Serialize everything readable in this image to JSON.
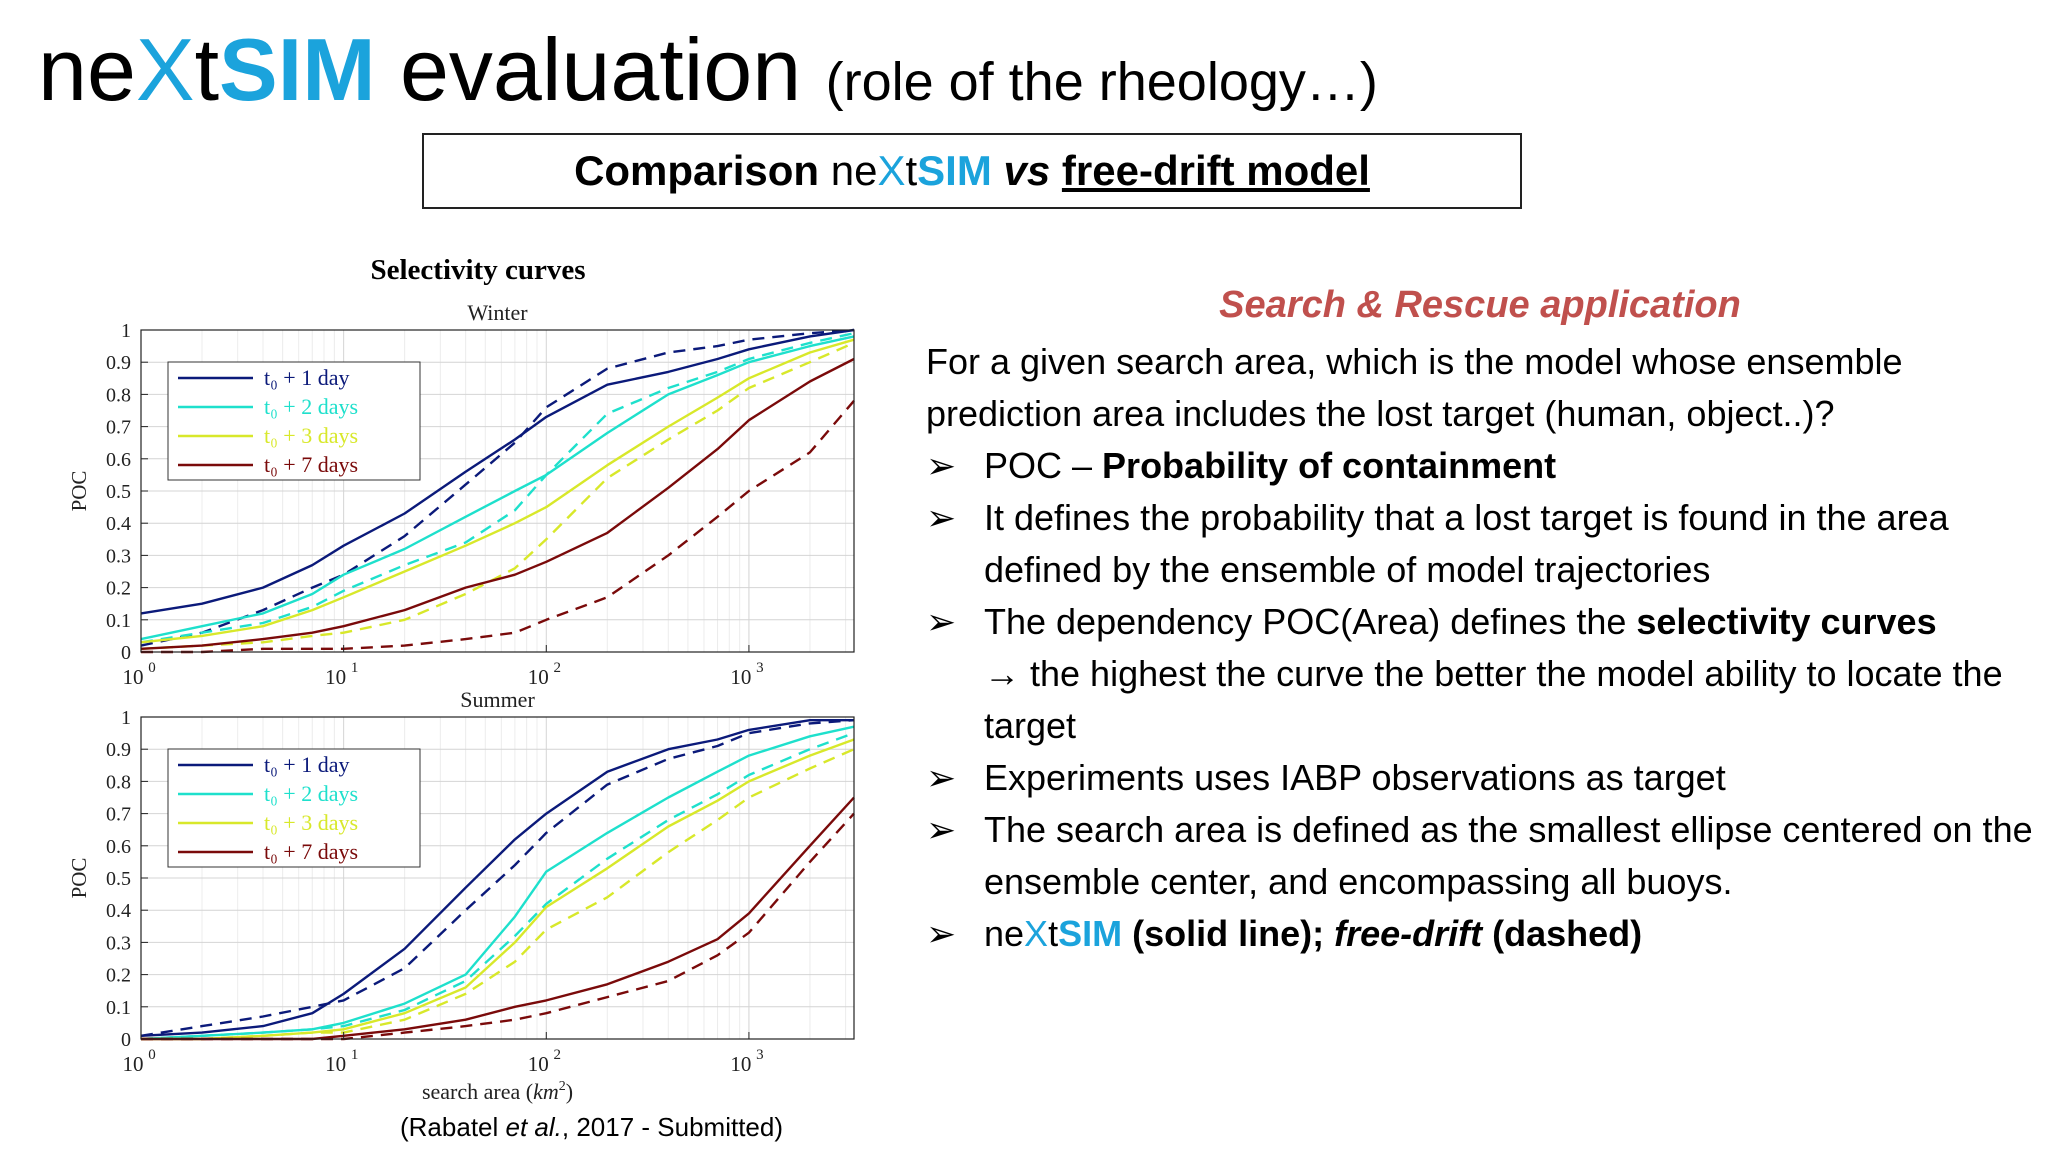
{
  "slide": {
    "title": {
      "ne": "ne",
      "x": "X",
      "t": "t",
      "sim": "SIM",
      "rest": " evaluation",
      "sub": "(role of the rheology…)"
    },
    "comparison": {
      "pre": "Comparison ",
      "ne": "ne",
      "x": "X",
      "t": "t",
      "sim": "SIM",
      "vs": " vs ",
      "model": "free-drift model"
    },
    "figure_title": "Selectivity curves",
    "citation": {
      "open": "(Rabatel ",
      "etal": "et al.",
      "rest": ", 2017 - Submitted)"
    },
    "sar_heading": "Search & Rescue application",
    "intro": "For a given search area, which is the model whose ensemble prediction area includes the lost target (human, object..)?",
    "bullet_marker": "➢",
    "bullets": {
      "b1": {
        "pre": "POC – ",
        "bold": "Probability of containment"
      },
      "b2": "It defines the probability that a lost target is found in the area defined by the ensemble of model trajectories",
      "b3": {
        "pre": "The dependency POC(Area) defines the ",
        "bold": "selectivity curves",
        "arrow": "→",
        "post": " the highest the curve the better the model ability to locate the target"
      },
      "b4": "Experiments uses IABP observations as target",
      "b5": "The search area is defined as the smallest ellipse centered on the ensemble center, and encompassing all buoys.",
      "b6": {
        "ne": "ne",
        "x": "X",
        "t": "t",
        "sim": "SIM",
        "solid": " (solid line); ",
        "fd": "free-drift",
        "dashed": " (dashed)"
      }
    }
  },
  "chart_data": [
    {
      "type": "line",
      "title": "Winter",
      "xlabel": "",
      "ylabel": "POC",
      "xscale": "log",
      "xlim": [
        1,
        3300
      ],
      "ylim": [
        0,
        1
      ],
      "xticks": [
        {
          "v": 1,
          "exp": "0"
        },
        {
          "v": 10,
          "exp": "1"
        },
        {
          "v": 100,
          "exp": "2"
        },
        {
          "v": 1000,
          "exp": "3"
        }
      ],
      "yticks": [
        0,
        0.1,
        0.2,
        0.3,
        0.4,
        0.5,
        0.6,
        0.7,
        0.8,
        0.9,
        1
      ],
      "grid": true,
      "legend_position": "top-left",
      "x": [
        1,
        2,
        4,
        7,
        10,
        20,
        40,
        70,
        100,
        200,
        400,
        700,
        1000,
        2000,
        3300
      ],
      "series": [
        {
          "name": "t₀ + 1 day",
          "color": "#0b1a7a",
          "neXtSIM": [
            0.12,
            0.15,
            0.2,
            0.27,
            0.33,
            0.43,
            0.56,
            0.66,
            0.73,
            0.83,
            0.87,
            0.91,
            0.94,
            0.98,
            1.0
          ],
          "free_drift": [
            0.02,
            0.06,
            0.13,
            0.2,
            0.24,
            0.36,
            0.52,
            0.65,
            0.76,
            0.88,
            0.93,
            0.95,
            0.97,
            0.99,
            1.0
          ]
        },
        {
          "name": "t₀ + 2 days",
          "color": "#1ee0cc",
          "neXtSIM": [
            0.04,
            0.08,
            0.12,
            0.18,
            0.24,
            0.32,
            0.42,
            0.5,
            0.55,
            0.68,
            0.8,
            0.86,
            0.9,
            0.95,
            0.98
          ],
          "free_drift": [
            0.03,
            0.06,
            0.09,
            0.14,
            0.19,
            0.27,
            0.34,
            0.44,
            0.55,
            0.74,
            0.82,
            0.87,
            0.91,
            0.96,
            0.99
          ]
        },
        {
          "name": "t₀ + 3 days",
          "color": "#d8e82a",
          "neXtSIM": [
            0.03,
            0.05,
            0.08,
            0.13,
            0.17,
            0.25,
            0.33,
            0.4,
            0.45,
            0.58,
            0.7,
            0.79,
            0.85,
            0.93,
            0.97
          ],
          "free_drift": [
            0.01,
            0.02,
            0.03,
            0.05,
            0.06,
            0.1,
            0.18,
            0.26,
            0.35,
            0.54,
            0.66,
            0.75,
            0.82,
            0.9,
            0.96
          ]
        },
        {
          "name": "t₀ + 7 days",
          "color": "#7a0a0a",
          "neXtSIM": [
            0.01,
            0.02,
            0.04,
            0.06,
            0.08,
            0.13,
            0.2,
            0.24,
            0.28,
            0.37,
            0.51,
            0.63,
            0.72,
            0.84,
            0.91
          ],
          "free_drift": [
            0.0,
            0.0,
            0.01,
            0.01,
            0.01,
            0.02,
            0.04,
            0.06,
            0.1,
            0.17,
            0.3,
            0.42,
            0.5,
            0.62,
            0.78
          ]
        }
      ]
    },
    {
      "type": "line",
      "title": "Summer",
      "xlabel": "search area",
      "xlabel_unit": "km",
      "xlabel_unit_exp": "2",
      "ylabel": "POC",
      "xscale": "log",
      "xlim": [
        1,
        3300
      ],
      "ylim": [
        0,
        1
      ],
      "xticks": [
        {
          "v": 1,
          "exp": "0"
        },
        {
          "v": 10,
          "exp": "1"
        },
        {
          "v": 100,
          "exp": "2"
        },
        {
          "v": 1000,
          "exp": "3"
        }
      ],
      "yticks": [
        0,
        0.1,
        0.2,
        0.3,
        0.4,
        0.5,
        0.6,
        0.7,
        0.8,
        0.9,
        1
      ],
      "grid": true,
      "legend_position": "top-left",
      "x": [
        1,
        2,
        4,
        7,
        10,
        20,
        40,
        70,
        100,
        200,
        400,
        700,
        1000,
        2000,
        3300
      ],
      "series": [
        {
          "name": "t₀ + 1 day",
          "color": "#0b1a7a",
          "neXtSIM": [
            0.01,
            0.02,
            0.04,
            0.08,
            0.14,
            0.28,
            0.47,
            0.62,
            0.7,
            0.83,
            0.9,
            0.93,
            0.96,
            0.99,
            0.99
          ],
          "free_drift": [
            0.01,
            0.04,
            0.07,
            0.1,
            0.12,
            0.22,
            0.4,
            0.54,
            0.64,
            0.79,
            0.87,
            0.91,
            0.95,
            0.98,
            0.99
          ]
        },
        {
          "name": "t₀ + 2 days",
          "color": "#1ee0cc",
          "neXtSIM": [
            0.0,
            0.01,
            0.02,
            0.03,
            0.05,
            0.11,
            0.2,
            0.38,
            0.52,
            0.64,
            0.75,
            0.83,
            0.88,
            0.94,
            0.97
          ],
          "free_drift": [
            0.0,
            0.01,
            0.02,
            0.03,
            0.04,
            0.09,
            0.18,
            0.32,
            0.42,
            0.56,
            0.68,
            0.76,
            0.82,
            0.9,
            0.95
          ]
        },
        {
          "name": "t₀ + 3 days",
          "color": "#d8e82a",
          "neXtSIM": [
            0.0,
            0.0,
            0.01,
            0.02,
            0.03,
            0.08,
            0.16,
            0.3,
            0.41,
            0.53,
            0.66,
            0.74,
            0.8,
            0.88,
            0.93
          ],
          "free_drift": [
            0.0,
            0.0,
            0.01,
            0.02,
            0.02,
            0.06,
            0.14,
            0.24,
            0.34,
            0.44,
            0.58,
            0.68,
            0.75,
            0.84,
            0.9
          ]
        },
        {
          "name": "t₀ + 7 days",
          "color": "#7a0a0a",
          "neXtSIM": [
            0.0,
            0.0,
            0.0,
            0.0,
            0.01,
            0.03,
            0.06,
            0.1,
            0.12,
            0.17,
            0.24,
            0.31,
            0.39,
            0.6,
            0.75
          ],
          "free_drift": [
            0.0,
            0.0,
            0.0,
            0.0,
            0.0,
            0.02,
            0.04,
            0.06,
            0.08,
            0.13,
            0.18,
            0.26,
            0.33,
            0.55,
            0.7
          ]
        }
      ]
    }
  ]
}
